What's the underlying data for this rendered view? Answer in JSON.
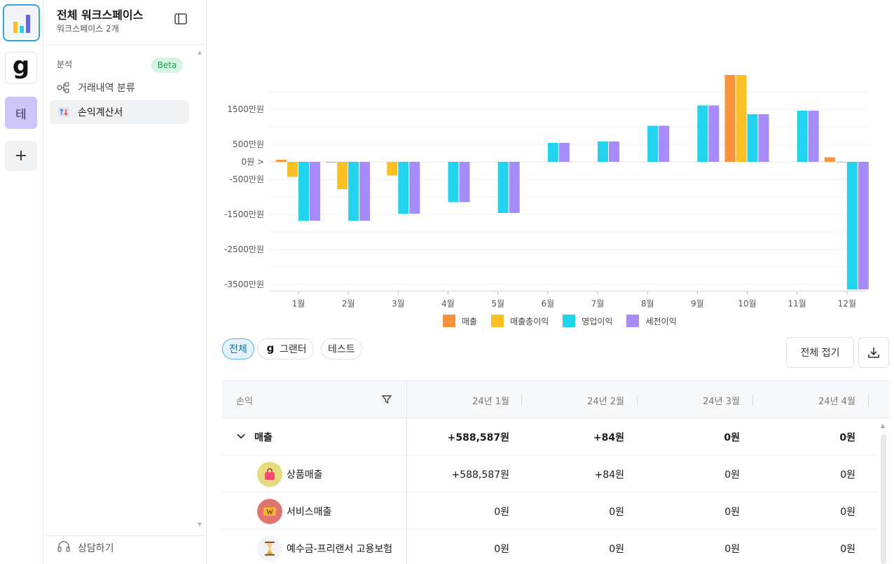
{
  "workspace": {
    "title": "전체 워크스페이스",
    "subtitle": "워크스페이스 2개"
  },
  "rail": {
    "g_logo": "g",
    "te_label": "테",
    "add_label": "+"
  },
  "sidebar": {
    "section_label": "분석",
    "beta_label": "Beta",
    "items": [
      {
        "label": "거래내역 분류",
        "icon": "flow-icon"
      },
      {
        "label": "손익계산서",
        "icon": "income-statement-icon"
      }
    ],
    "consult_label": "상담하기"
  },
  "chart_data": {
    "type": "bar",
    "categories": [
      "1월",
      "2월",
      "3월",
      "4월",
      "5월",
      "6월",
      "7월",
      "8월",
      "9월",
      "10월",
      "11월",
      "12월"
    ],
    "y_ticks": [
      {
        "value": 15000000,
        "label": "1500만원"
      },
      {
        "value": 5000000,
        "label": "500만원"
      },
      {
        "value": 0,
        "label": "0원 >"
      },
      {
        "value": -5000000,
        "label": "-500만원"
      },
      {
        "value": -15000000,
        "label": "-1500만원"
      },
      {
        "value": -25000000,
        "label": "-2500만원"
      },
      {
        "value": -35000000,
        "label": "-3500만원"
      }
    ],
    "ylim": [
      -36500000,
      25000000
    ],
    "grid": true,
    "legend_position": "bottom-center",
    "series": [
      {
        "name": "매출",
        "color": "#fb923c",
        "values": [
          588587,
          84,
          0,
          0,
          0,
          0,
          0,
          0,
          0,
          24800000,
          0,
          1300000
        ]
      },
      {
        "name": "매출총이익",
        "color": "#fbbf24",
        "values": [
          -4300000,
          -7800000,
          -3900000,
          0,
          0,
          0,
          0,
          0,
          0,
          24800000,
          0,
          -200000
        ]
      },
      {
        "name": "영업이익",
        "color": "#22d3ee",
        "values": [
          -16800000,
          -16800000,
          -14800000,
          -11500000,
          -14600000,
          5400000,
          5800000,
          10300000,
          16100000,
          13600000,
          14600000,
          -36400000
        ]
      },
      {
        "name": "세전이익",
        "color": "#a78bfa",
        "values": [
          -16800000,
          -16800000,
          -14800000,
          -11500000,
          -14600000,
          5400000,
          5800000,
          10300000,
          16100000,
          13600000,
          14600000,
          -36400000
        ]
      }
    ]
  },
  "filters": {
    "chips": [
      {
        "label": "전체",
        "active": true
      },
      {
        "label": "그랜터",
        "active": false
      },
      {
        "label": "테스트",
        "active": false
      }
    ],
    "collapse_all_label": "전체 접기"
  },
  "table": {
    "first_header": "손익",
    "columns": [
      "24년 1월",
      "24년 2월",
      "24년 3월",
      "24년 4월"
    ],
    "rows": [
      {
        "label": "매출",
        "values": [
          "+588,587원",
          "+84원",
          "0원",
          "0원"
        ]
      },
      {
        "label": "상품매출",
        "values": [
          "+588,587원",
          "+84원",
          "0원",
          "0원"
        ]
      },
      {
        "label": "서비스매출",
        "values": [
          "0원",
          "0원",
          "0원",
          "0원"
        ]
      },
      {
        "label": "예수금-프리랜서 고용보험",
        "values": [
          "0원",
          "0원",
          "0원",
          "0원"
        ]
      }
    ]
  }
}
